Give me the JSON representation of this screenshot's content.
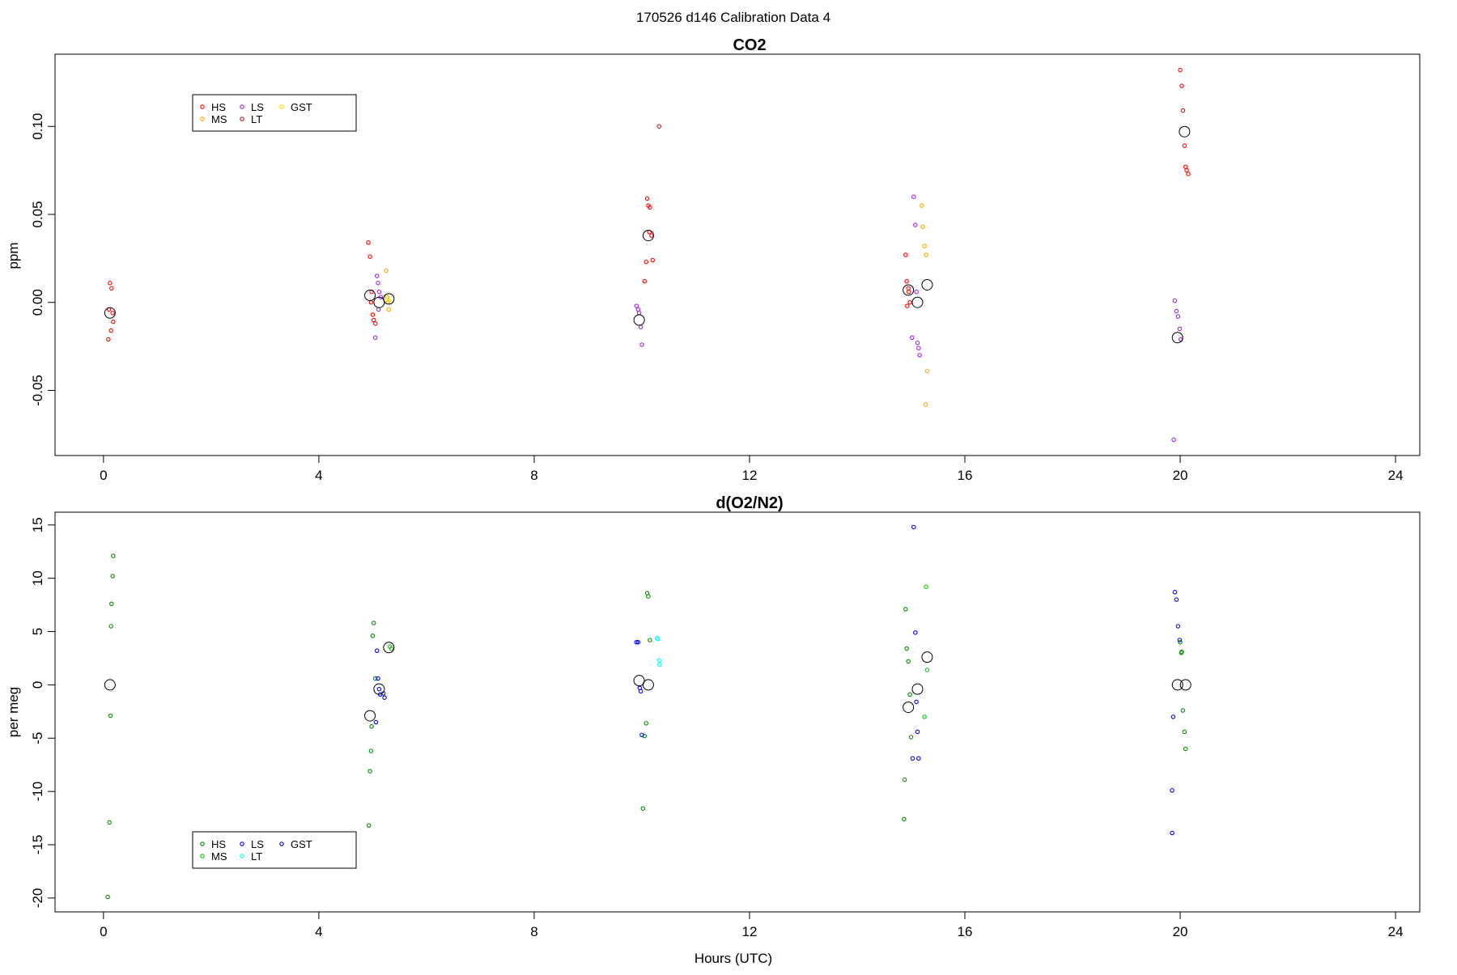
{
  "figure_title": "170526   d146   Calibration Data 4",
  "chart_data": [
    {
      "type": "scatter",
      "title": "CO2",
      "xlabel": "",
      "ylabel": "ppm",
      "xlim": [
        -0.9,
        24.45
      ],
      "ylim": [
        -0.087,
        0.141
      ],
      "xticks": [
        0,
        4,
        8,
        12,
        16,
        20,
        24
      ],
      "yticks": [
        -0.05,
        0.0,
        0.05,
        0.1
      ],
      "ytick_labels": [
        "-0.05",
        "0.00",
        "0.05",
        "0.10"
      ],
      "grid": false,
      "legend": {
        "position": "top-left",
        "entries": [
          {
            "label": "HS",
            "color": "#ff0000"
          },
          {
            "label": "MS",
            "color": "#ffa500"
          },
          {
            "label": "LS",
            "color": "#a020f0"
          },
          {
            "label": "LT",
            "color": "#b22222"
          },
          {
            "label": "GST",
            "color": "#ffd700"
          }
        ]
      },
      "series": [
        {
          "name": "HS",
          "color": "#ff0000",
          "x": [
            0.12,
            0.15,
            0.1,
            0.18,
            0.14,
            0.09,
            0.17,
            4.92,
            4.95,
            4.98,
            5.0,
            5.02,
            5.05,
            4.97,
            10.1,
            10.12,
            10.15,
            10.18,
            10.2,
            10.08,
            10.05,
            10.14,
            14.9,
            14.92,
            14.95,
            14.98,
            14.93,
            14.96,
            20.0,
            20.03,
            20.05,
            20.08,
            20.1,
            20.12,
            20.15
          ],
          "y": [
            0.011,
            0.008,
            -0.004,
            -0.011,
            -0.016,
            -0.021,
            -0.006,
            0.034,
            0.026,
            0.006,
            -0.007,
            -0.01,
            -0.012,
            0.0,
            0.059,
            0.055,
            0.054,
            0.038,
            0.024,
            0.023,
            0.012,
            0.04,
            0.027,
            0.012,
            0.008,
            0.0,
            -0.002,
            0.006,
            0.132,
            0.123,
            0.109,
            0.089,
            0.077,
            0.075,
            0.073
          ]
        },
        {
          "name": "MS",
          "color": "#ffa500",
          "x": [
            5.25,
            5.28,
            5.3,
            5.27,
            15.2,
            15.22,
            15.25,
            15.28,
            15.3,
            15.27
          ],
          "y": [
            0.018,
            0.0,
            -0.004,
            0.003,
            0.055,
            0.043,
            0.032,
            0.027,
            -0.039,
            -0.058
          ]
        },
        {
          "name": "LS",
          "color": "#a020f0",
          "x": [
            5.08,
            5.1,
            5.12,
            5.15,
            5.05,
            5.11,
            9.9,
            9.93,
            9.95,
            9.98,
            10.0,
            15.05,
            15.08,
            15.1,
            15.12,
            15.14,
            15.16,
            15.02,
            19.9,
            19.93,
            19.96,
            19.99,
            20.01,
            19.88
          ],
          "y": [
            0.015,
            0.011,
            0.006,
            0.003,
            -0.02,
            -0.004,
            -0.002,
            -0.004,
            -0.006,
            -0.014,
            -0.024,
            0.06,
            0.044,
            0.006,
            -0.023,
            -0.026,
            -0.03,
            -0.02,
            0.001,
            -0.005,
            -0.008,
            -0.015,
            -0.021,
            -0.078
          ]
        },
        {
          "name": "LT",
          "color": "#b22222",
          "x": [
            10.32
          ],
          "y": [
            0.1
          ]
        },
        {
          "name": "GST",
          "color": "#ffd700",
          "x": [
            5.26,
            5.3
          ],
          "y": [
            0.003,
            0.001
          ]
        }
      ],
      "means": {
        "x": [
          0.12,
          4.95,
          5.12,
          5.3,
          9.95,
          10.12,
          14.95,
          15.12,
          15.3,
          19.95,
          20.08
        ],
        "y": [
          -0.006,
          0.004,
          0.0,
          0.002,
          -0.01,
          0.038,
          0.007,
          0.0,
          0.01,
          -0.02,
          0.097
        ]
      }
    },
    {
      "type": "scatter",
      "title": "d(O2/N2)",
      "xlabel": "Hours (UTC)",
      "ylabel": "per meg",
      "xlim": [
        -0.9,
        24.45
      ],
      "ylim": [
        -21.3,
        16.2
      ],
      "xticks": [
        0,
        4,
        8,
        12,
        16,
        20,
        24
      ],
      "yticks": [
        -20,
        -15,
        -10,
        -5,
        0,
        5,
        10,
        15
      ],
      "ytick_labels": [
        "-20",
        "-15",
        "-10",
        "-5",
        "0",
        "5",
        "10",
        "15"
      ],
      "grid": false,
      "legend": {
        "position": "bottom-left",
        "entries": [
          {
            "label": "HS",
            "color": "#008b00"
          },
          {
            "label": "MS",
            "color": "#00cd00"
          },
          {
            "label": "LS",
            "color": "#0000ff"
          },
          {
            "label": "LT",
            "color": "#00ffff"
          },
          {
            "label": "GST",
            "color": "#0000cd"
          }
        ]
      },
      "series": [
        {
          "name": "HS",
          "color": "#008b00",
          "x": [
            0.18,
            0.17,
            0.15,
            0.14,
            0.13,
            0.11,
            0.08,
            5.02,
            5.0,
            4.98,
            4.97,
            4.95,
            4.93,
            5.05,
            10.1,
            10.12,
            10.15,
            10.08,
            10.05,
            10.02,
            14.9,
            14.92,
            14.95,
            14.98,
            15.0,
            14.88,
            14.87,
            20.0,
            20.02,
            20.05,
            20.08,
            20.1,
            20.03
          ],
          "y": [
            12.1,
            10.2,
            7.6,
            5.5,
            -2.9,
            -12.9,
            -19.9,
            5.8,
            4.6,
            -3.9,
            -6.2,
            -8.1,
            -13.2,
            0.6,
            8.6,
            8.3,
            4.2,
            -3.6,
            -4.8,
            -11.6,
            7.1,
            3.4,
            2.2,
            -0.9,
            -4.9,
            -8.9,
            -12.6,
            4.0,
            3.0,
            -2.4,
            -4.4,
            -6.0,
            3.1
          ]
        },
        {
          "name": "MS",
          "color": "#00cd00",
          "x": [
            5.32,
            5.35,
            15.28,
            15.3,
            15.25
          ],
          "y": [
            3.6,
            3.4,
            9.2,
            1.4,
            -3.0
          ]
        },
        {
          "name": "LS",
          "color": "#0000ff",
          "x": [
            5.08,
            5.1,
            5.12,
            5.14,
            5.06,
            9.9,
            9.93,
            9.96,
            9.98,
            10.0,
            15.05,
            15.08,
            15.1,
            15.12,
            15.14,
            15.03,
            19.9,
            19.93,
            19.96,
            19.99,
            19.87,
            19.85
          ],
          "y": [
            3.2,
            0.6,
            -0.4,
            -0.9,
            -3.5,
            4.0,
            4.0,
            -0.3,
            -0.6,
            -4.7,
            14.8,
            4.9,
            -1.6,
            -4.4,
            -6.9,
            -6.9,
            8.7,
            8.0,
            5.5,
            4.2,
            -3.0,
            -13.9
          ]
        },
        {
          "name": "LT",
          "color": "#00ffff",
          "x": [
            10.3,
            10.32,
            10.33,
            10.28
          ],
          "y": [
            4.3,
            2.3,
            1.9,
            4.4
          ]
        },
        {
          "name": "GST",
          "color": "#0000cd",
          "x": [
            5.2,
            5.22,
            19.85
          ],
          "y": [
            -0.8,
            -1.2,
            -9.9
          ]
        }
      ],
      "means": {
        "x": [
          0.12,
          4.95,
          5.12,
          5.3,
          9.95,
          10.12,
          14.95,
          15.12,
          15.3,
          19.95,
          20.1
        ],
        "y": [
          0.0,
          -2.9,
          -0.4,
          3.5,
          0.4,
          0.0,
          -2.1,
          -0.4,
          2.6,
          0.0,
          0.0
        ]
      }
    }
  ]
}
